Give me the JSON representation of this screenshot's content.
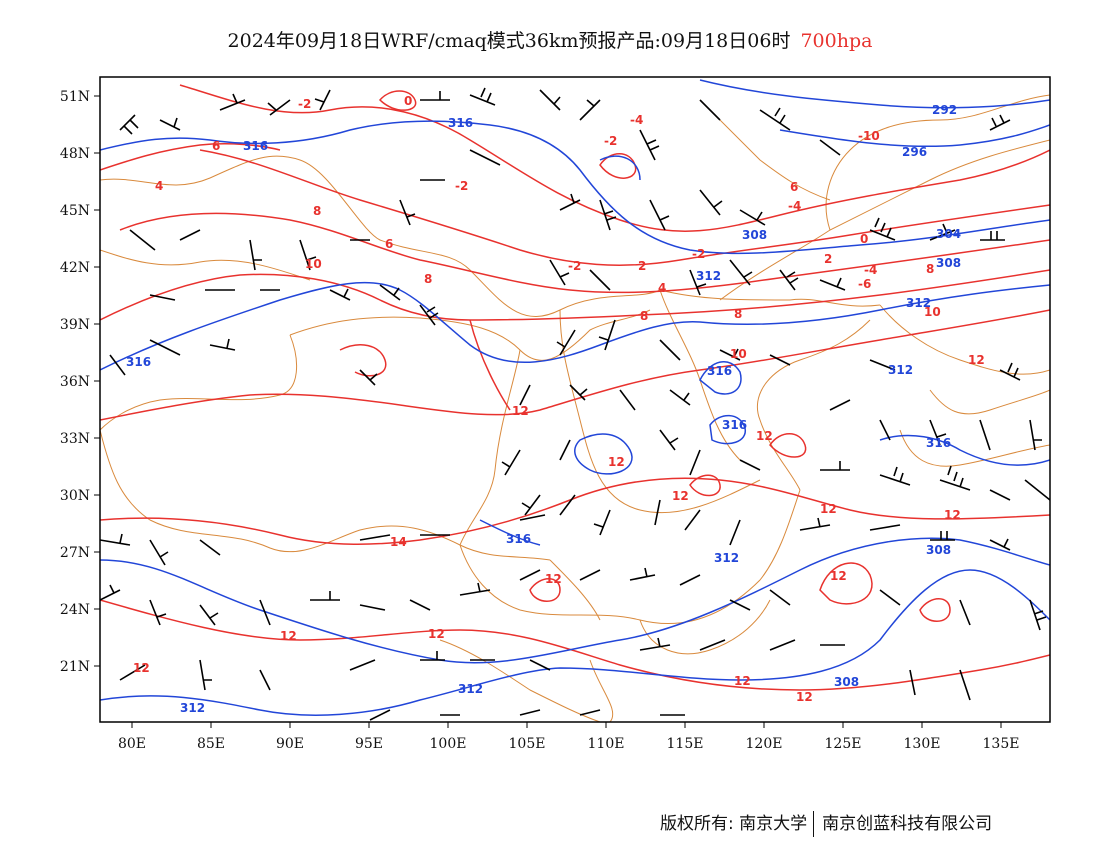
{
  "title": {
    "main": "2024年09月18日WRF/cmaq模式36km预报产品:09月18日06时",
    "level": "700hpa"
  },
  "axes": {
    "lat_labels": [
      "51N",
      "48N",
      "45N",
      "42N",
      "39N",
      "36N",
      "33N",
      "30N",
      "27N",
      "24N",
      "21N"
    ],
    "lon_labels": [
      "80E",
      "85E",
      "90E",
      "95E",
      "100E",
      "105E",
      "110E",
      "115E",
      "120E",
      "125E",
      "130E",
      "135E"
    ]
  },
  "colors": {
    "temperature": "#e8322e",
    "geopotential": "#2246d8",
    "boundary": "#d98a3d",
    "wind": "#000000"
  },
  "temperature_labels": [
    "-2",
    "0",
    "6",
    "-4",
    "-10",
    "-2",
    "4",
    "-2",
    "6",
    "-4",
    "8",
    "6",
    "-2",
    "0",
    "-4",
    "10",
    "8",
    "2",
    "-2",
    "4",
    "-6",
    "2",
    "8",
    "8",
    "10",
    "8",
    "10",
    "12",
    "12",
    "12",
    "12",
    "12",
    "14",
    "12",
    "12",
    "12",
    "12",
    "12",
    "12",
    "12",
    "12",
    "12"
  ],
  "geopotential_labels": [
    "316",
    "316",
    "292",
    "296",
    "308",
    "304",
    "308",
    "312",
    "312",
    "316",
    "316",
    "316",
    "312",
    "316",
    "316",
    "308",
    "312",
    "308",
    "312",
    "312"
  ],
  "copyright": {
    "left": "版权所有: 南京大学",
    "right": "南京创蓝科技有限公司"
  }
}
